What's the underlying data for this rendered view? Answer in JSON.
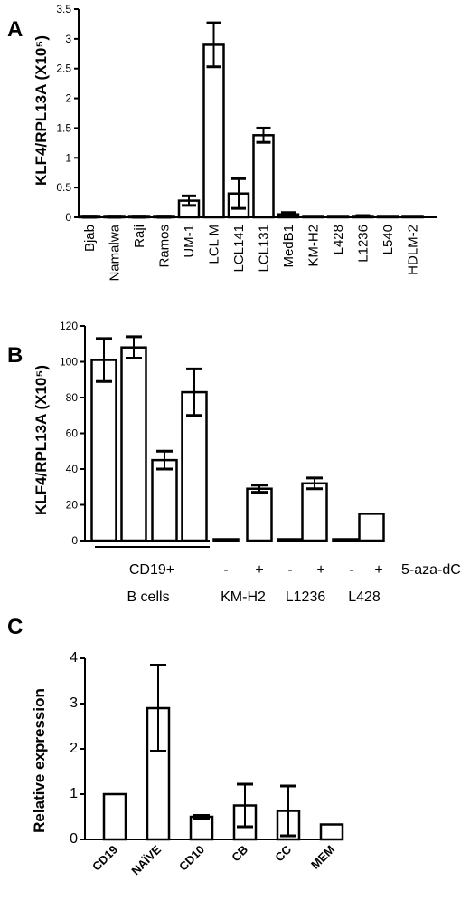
{
  "chart_data": [
    {
      "panel": "A",
      "type": "bar",
      "ylabel": "KLF4/RPL13A (X10⁵)",
      "ylim": [
        0,
        3.5
      ],
      "yticks": [
        "0",
        "0.5",
        "1",
        "1.5",
        "2",
        "2.5",
        "3",
        "3.5"
      ],
      "categories": [
        "Bjab",
        "Namalwa",
        "Raji",
        "Ramos",
        "UM-1",
        "LCL M",
        "LCL141",
        "LCL131",
        "MedB1",
        "KM-H2",
        "L428",
        "L1236",
        "L540",
        "HDLM-2"
      ],
      "values": [
        0.01,
        0.01,
        0.01,
        0.01,
        0.28,
        2.9,
        0.4,
        1.38,
        0.05,
        0.01,
        0.01,
        0.02,
        0.01,
        0.01
      ],
      "errors": [
        0.01,
        0.01,
        0.01,
        0.01,
        0.08,
        0.37,
        0.25,
        0.12,
        0.03,
        0.0,
        0.0,
        0.01,
        0.0,
        0.0
      ]
    },
    {
      "panel": "B",
      "type": "bar",
      "ylabel": "KLF4/RPL13A (X10⁵)",
      "ylim": [
        0,
        120
      ],
      "yticks": [
        "0",
        "20",
        "40",
        "60",
        "80",
        "100",
        "120"
      ],
      "values": [
        101,
        108,
        45,
        83,
        0.5,
        29,
        0.5,
        32,
        0.5,
        15
      ],
      "errors": [
        12,
        6,
        5,
        13,
        0,
        2,
        0,
        3,
        0,
        0
      ],
      "treatment_label": "5-aza-dC",
      "treatment_marks": [
        "-",
        "+",
        "-",
        "+",
        "-",
        "+"
      ],
      "groups": [
        {
          "label_lines": [
            "CD19+",
            "B cells"
          ]
        },
        {
          "label_lines": [
            "KM-H2"
          ]
        },
        {
          "label_lines": [
            "L1236"
          ]
        },
        {
          "label_lines": [
            "L428"
          ]
        }
      ]
    },
    {
      "panel": "C",
      "type": "bar",
      "ylabel": "Relative expression",
      "ylim": [
        0,
        4
      ],
      "yticks": [
        "0",
        "1",
        "2",
        "3",
        "4"
      ],
      "categories": [
        "CD19",
        "NAÏVE",
        "CD10",
        "CB",
        "CC",
        "MEM"
      ],
      "values": [
        1.0,
        2.9,
        0.5,
        0.75,
        0.63,
        0.33
      ],
      "errors": [
        0.0,
        0.95,
        0.03,
        0.47,
        0.55,
        0.0
      ]
    }
  ]
}
